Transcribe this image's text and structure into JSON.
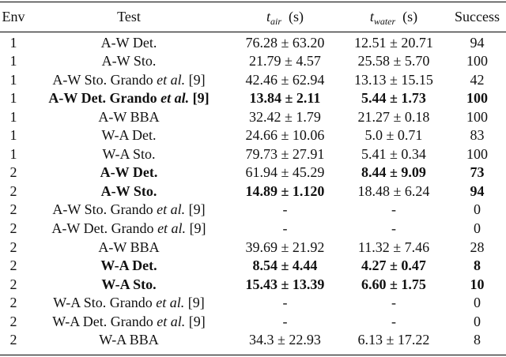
{
  "headers": {
    "env": "Env",
    "test": "Test",
    "t_air_var": "t",
    "t_air_sub": "air",
    "t_air_unit": "(s)",
    "t_water_var": "t",
    "t_water_sub": "water",
    "t_water_unit": "(s)",
    "success": "Success"
  },
  "rows": [
    {
      "env": "1",
      "test": "A-W Det.",
      "air": "76.28 ± 63.20",
      "water": "12.51 ± 20.71",
      "success": "94",
      "bold": false
    },
    {
      "env": "1",
      "test": "A-W Sto.",
      "air": "21.79 ± 4.57",
      "water": "25.58 ± 5.70",
      "success": "100",
      "bold": false
    },
    {
      "env": "1",
      "test_pre": "A-W Sto. Grando ",
      "test_it": "et al.",
      "test_post": " [9]",
      "air": "42.46 ± 62.94",
      "water": "13.13 ± 15.15",
      "success": "42",
      "bold": false
    },
    {
      "env": "1",
      "test_pre": "A-W Det. Grando ",
      "test_it": "et al.",
      "test_post": " [9]",
      "air": "13.84 ± 2.11",
      "water": "5.44 ± 1.73",
      "success": "100",
      "bold": true
    },
    {
      "env": "1",
      "test": "A-W BBA",
      "air": "32.42 ± 1.79",
      "water": "21.27 ± 0.18",
      "success": "100",
      "bold": false
    },
    {
      "env": "1",
      "test": "W-A Det.",
      "air": "24.66 ± 10.06",
      "water": "5.0 ± 0.71",
      "success": "83",
      "bold": false
    },
    {
      "env": "1",
      "test": "W-A Sto.",
      "air": "79.73 ± 27.91",
      "water": "5.41 ± 0.34",
      "success": "100",
      "bold": false
    },
    {
      "env": "2",
      "test": "A-W Det.",
      "air": "61.94 ± 45.29",
      "water": "8.44 ± 9.09",
      "success": "73",
      "bold": true,
      "air_normal": true
    },
    {
      "env": "2",
      "test": "A-W Sto.",
      "air": "14.89 ± 1.120",
      "water": "18.48 ± 6.24",
      "success": "94",
      "bold": true,
      "water_normal": true
    },
    {
      "env": "2",
      "test_pre": "A-W Sto. Grando ",
      "test_it": "et al.",
      "test_post": " [9]",
      "air": "-",
      "water": "-",
      "success": "0",
      "bold": false
    },
    {
      "env": "2",
      "test_pre": "A-W Det. Grando ",
      "test_it": "et al.",
      "test_post": " [9]",
      "air": "-",
      "water": "-",
      "success": "0",
      "bold": false
    },
    {
      "env": "2",
      "test": "A-W BBA",
      "air": "39.69 ± 21.92",
      "water": "11.32 ± 7.46",
      "success": "28",
      "bold": false
    },
    {
      "env": "2",
      "test": "W-A Det.",
      "air": "8.54 ± 4.44",
      "water": "4.27 ± 0.47",
      "success": "8",
      "bold": true
    },
    {
      "env": "2",
      "test": "W-A Sto.",
      "air": "15.43 ± 13.39",
      "water": "6.60 ± 1.75",
      "success": "10",
      "bold": true
    },
    {
      "env": "2",
      "test_pre": "W-A Sto. Grando ",
      "test_it": "et al.",
      "test_post": " [9]",
      "air": "-",
      "water": "-",
      "success": "0",
      "bold": false
    },
    {
      "env": "2",
      "test_pre": "W-A Det. Grando ",
      "test_it": "et al.",
      "test_post": " [9]",
      "air": "-",
      "water": "-",
      "success": "0",
      "bold": false
    },
    {
      "env": "2",
      "test": "W-A BBA",
      "air": "34.3 ± 22.93",
      "water": "6.13 ± 17.22",
      "success": "8",
      "bold": false
    }
  ]
}
